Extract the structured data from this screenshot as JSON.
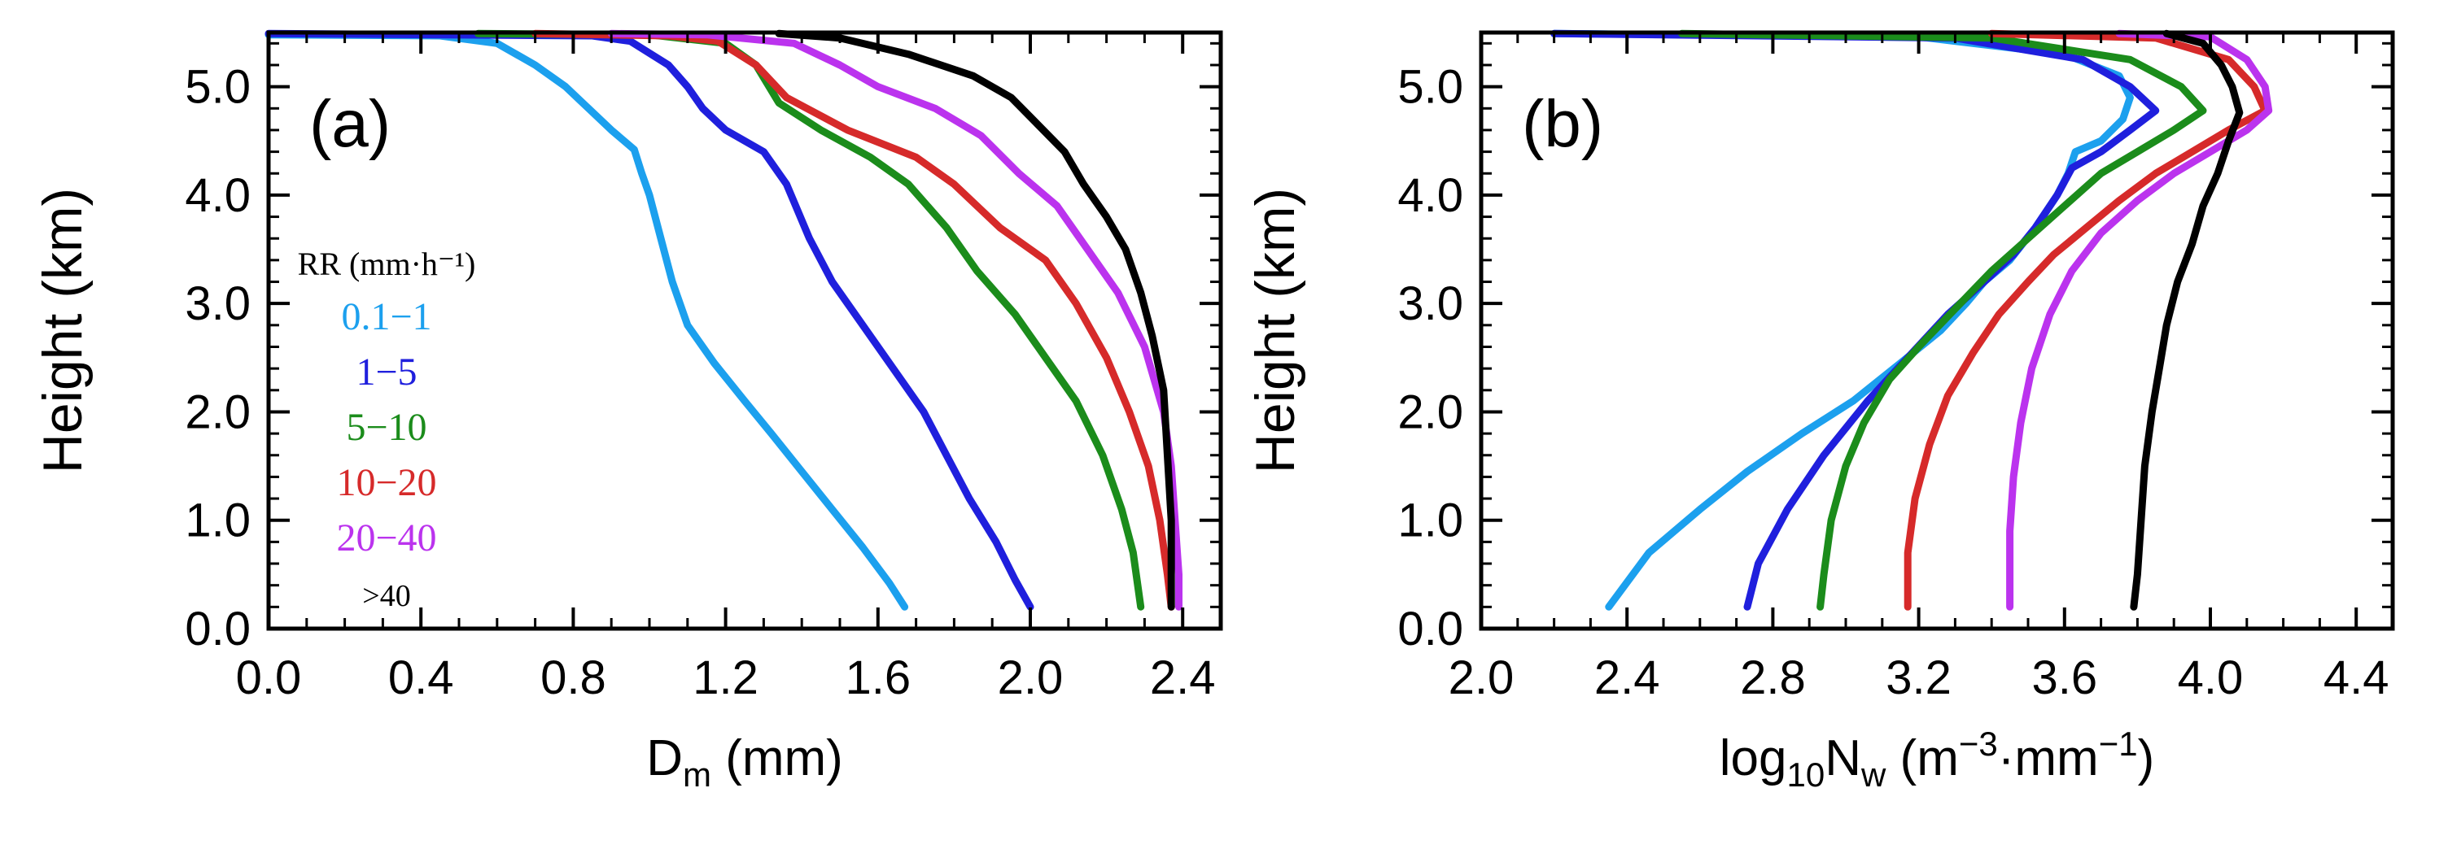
{
  "chart_data": [
    {
      "type": "line",
      "panel_label": "(a)",
      "xlabel": "D",
      "xlabel_sub": "m",
      "xlabel_unit": " (mm)",
      "ylabel": "Height (km)",
      "xlim": [
        0.0,
        2.5
      ],
      "ylim": [
        0.0,
        5.5
      ],
      "xticks": [
        "0.0",
        "0.4",
        "0.8",
        "1.2",
        "1.6",
        "2.0",
        "2.4"
      ],
      "yticks": [
        "0.0",
        "1.0",
        "2.0",
        "3.0",
        "4.0",
        "5.0"
      ],
      "legend": {
        "title": "RR (mm·h⁻¹)",
        "placement": "left"
      },
      "series": [
        {
          "name": "0.1−1",
          "color": "#1ca0ee",
          "points": [
            [
              0.0,
              5.48
            ],
            [
              0.45,
              5.47
            ],
            [
              0.6,
              5.4
            ],
            [
              0.7,
              5.2
            ],
            [
              0.78,
              5.0
            ],
            [
              0.84,
              4.8
            ],
            [
              0.9,
              4.6
            ],
            [
              0.96,
              4.42
            ],
            [
              0.98,
              4.2
            ],
            [
              1.0,
              4.0
            ],
            [
              1.03,
              3.6
            ],
            [
              1.06,
              3.2
            ],
            [
              1.1,
              2.8
            ],
            [
              1.17,
              2.45
            ],
            [
              1.25,
              2.1
            ],
            [
              1.32,
              1.8
            ],
            [
              1.4,
              1.45
            ],
            [
              1.48,
              1.1
            ],
            [
              1.56,
              0.75
            ],
            [
              1.63,
              0.42
            ],
            [
              1.67,
              0.2
            ]
          ]
        },
        {
          "name": "1−5",
          "color": "#1f1fdd",
          "points": [
            [
              0.0,
              5.49
            ],
            [
              0.85,
              5.47
            ],
            [
              0.95,
              5.42
            ],
            [
              1.05,
              5.2
            ],
            [
              1.1,
              5.0
            ],
            [
              1.14,
              4.8
            ],
            [
              1.2,
              4.6
            ],
            [
              1.3,
              4.4
            ],
            [
              1.36,
              4.1
            ],
            [
              1.42,
              3.6
            ],
            [
              1.48,
              3.2
            ],
            [
              1.56,
              2.8
            ],
            [
              1.64,
              2.4
            ],
            [
              1.72,
              2.0
            ],
            [
              1.78,
              1.6
            ],
            [
              1.84,
              1.2
            ],
            [
              1.91,
              0.8
            ],
            [
              1.96,
              0.45
            ],
            [
              2.0,
              0.2
            ]
          ]
        },
        {
          "name": "5−10",
          "color": "#1b8c1b",
          "points": [
            [
              0.55,
              5.49
            ],
            [
              1.0,
              5.48
            ],
            [
              1.2,
              5.4
            ],
            [
              1.28,
              5.2
            ],
            [
              1.34,
              4.85
            ],
            [
              1.45,
              4.6
            ],
            [
              1.58,
              4.35
            ],
            [
              1.68,
              4.1
            ],
            [
              1.78,
              3.7
            ],
            [
              1.86,
              3.3
            ],
            [
              1.96,
              2.9
            ],
            [
              2.04,
              2.5
            ],
            [
              2.12,
              2.1
            ],
            [
              2.19,
              1.6
            ],
            [
              2.24,
              1.1
            ],
            [
              2.27,
              0.7
            ],
            [
              2.29,
              0.2
            ]
          ]
        },
        {
          "name": "10−20",
          "color": "#d62a2a",
          "points": [
            [
              0.7,
              5.49
            ],
            [
              1.05,
              5.47
            ],
            [
              1.18,
              5.42
            ],
            [
              1.28,
              5.2
            ],
            [
              1.36,
              4.9
            ],
            [
              1.52,
              4.6
            ],
            [
              1.7,
              4.35
            ],
            [
              1.8,
              4.1
            ],
            [
              1.92,
              3.7
            ],
            [
              2.04,
              3.4
            ],
            [
              2.12,
              3.0
            ],
            [
              2.2,
              2.5
            ],
            [
              2.26,
              2.0
            ],
            [
              2.31,
              1.5
            ],
            [
              2.34,
              1.0
            ],
            [
              2.36,
              0.5
            ],
            [
              2.37,
              0.2
            ]
          ]
        },
        {
          "name": "20−40",
          "color": "#bb33ee",
          "points": [
            [
              0.9,
              5.49
            ],
            [
              1.15,
              5.48
            ],
            [
              1.38,
              5.4
            ],
            [
              1.5,
              5.2
            ],
            [
              1.6,
              5.0
            ],
            [
              1.75,
              4.8
            ],
            [
              1.87,
              4.55
            ],
            [
              1.97,
              4.2
            ],
            [
              2.07,
              3.9
            ],
            [
              2.15,
              3.5
            ],
            [
              2.23,
              3.1
            ],
            [
              2.3,
              2.6
            ],
            [
              2.35,
              2.0
            ],
            [
              2.37,
              1.5
            ],
            [
              2.38,
              1.0
            ],
            [
              2.39,
              0.5
            ],
            [
              2.39,
              0.2
            ]
          ]
        },
        {
          "name": ">40",
          "color": "#000000",
          "points": [
            [
              1.34,
              5.49
            ],
            [
              1.5,
              5.45
            ],
            [
              1.68,
              5.3
            ],
            [
              1.85,
              5.1
            ],
            [
              1.95,
              4.9
            ],
            [
              2.02,
              4.65
            ],
            [
              2.09,
              4.4
            ],
            [
              2.14,
              4.1
            ],
            [
              2.2,
              3.8
            ],
            [
              2.25,
              3.5
            ],
            [
              2.29,
              3.1
            ],
            [
              2.32,
              2.7
            ],
            [
              2.35,
              2.2
            ],
            [
              2.36,
              1.6
            ],
            [
              2.37,
              1.0
            ],
            [
              2.37,
              0.5
            ],
            [
              2.37,
              0.2
            ]
          ]
        }
      ]
    },
    {
      "type": "line",
      "panel_label": "(b)",
      "xlabel": "log",
      "xlabel_sub": "10",
      "xlabel_n": "N",
      "xlabel_nsub": "w",
      "xlabel_unit_a": " (m",
      "xlabel_sup1": "−3",
      "xlabel_unit_b": "·mm",
      "xlabel_sup2": "−1",
      "xlabel_unit_c": ")",
      "ylabel": "Height (km)",
      "xlim": [
        2.0,
        4.5
      ],
      "ylim": [
        0.0,
        5.5
      ],
      "xticks": [
        "2.0",
        "2.4",
        "2.8",
        "3.2",
        "3.6",
        "4.0",
        "4.4"
      ],
      "yticks": [
        "0.0",
        "1.0",
        "2.0",
        "3.0",
        "4.0",
        "5.0"
      ],
      "series": [
        {
          "name": "0.1−1",
          "color": "#1ca0ee",
          "points": [
            [
              2.2,
              5.49
            ],
            [
              3.2,
              5.46
            ],
            [
              3.6,
              5.3
            ],
            [
              3.75,
              5.1
            ],
            [
              3.78,
              4.9
            ],
            [
              3.76,
              4.7
            ],
            [
              3.7,
              4.5
            ],
            [
              3.63,
              4.4
            ],
            [
              3.61,
              4.2
            ],
            [
              3.58,
              4.0
            ],
            [
              3.52,
              3.7
            ],
            [
              3.45,
              3.4
            ],
            [
              3.38,
              3.2
            ],
            [
              3.33,
              3.0
            ],
            [
              3.26,
              2.75
            ],
            [
              3.15,
              2.45
            ],
            [
              3.02,
              2.1
            ],
            [
              2.88,
              1.8
            ],
            [
              2.73,
              1.45
            ],
            [
              2.6,
              1.1
            ],
            [
              2.46,
              0.7
            ],
            [
              2.35,
              0.2
            ]
          ]
        },
        {
          "name": "1−5",
          "color": "#1f1fdd",
          "points": [
            [
              2.2,
              5.49
            ],
            [
              3.3,
              5.45
            ],
            [
              3.65,
              5.25
            ],
            [
              3.78,
              5.0
            ],
            [
              3.85,
              4.78
            ],
            [
              3.78,
              4.6
            ],
            [
              3.7,
              4.4
            ],
            [
              3.62,
              4.25
            ],
            [
              3.58,
              4.0
            ],
            [
              3.52,
              3.7
            ],
            [
              3.46,
              3.45
            ],
            [
              3.38,
              3.2
            ],
            [
              3.28,
              2.9
            ],
            [
              3.17,
              2.5
            ],
            [
              3.06,
              2.1
            ],
            [
              2.94,
              1.6
            ],
            [
              2.84,
              1.1
            ],
            [
              2.76,
              0.6
            ],
            [
              2.73,
              0.2
            ]
          ]
        },
        {
          "name": "5−10",
          "color": "#1b8c1b",
          "points": [
            [
              2.55,
              5.49
            ],
            [
              3.4,
              5.45
            ],
            [
              3.78,
              5.25
            ],
            [
              3.92,
              5.0
            ],
            [
              3.98,
              4.78
            ],
            [
              3.9,
              4.6
            ],
            [
              3.8,
              4.4
            ],
            [
              3.7,
              4.2
            ],
            [
              3.6,
              3.9
            ],
            [
              3.5,
              3.6
            ],
            [
              3.4,
              3.3
            ],
            [
              3.3,
              2.95
            ],
            [
              3.2,
              2.6
            ],
            [
              3.12,
              2.3
            ],
            [
              3.05,
              1.9
            ],
            [
              3.0,
              1.5
            ],
            [
              2.96,
              1.0
            ],
            [
              2.94,
              0.5
            ],
            [
              2.93,
              0.2
            ]
          ]
        },
        {
          "name": "10−20",
          "color": "#d62a2a",
          "points": [
            [
              3.4,
              5.49
            ],
            [
              3.85,
              5.45
            ],
            [
              4.05,
              5.25
            ],
            [
              4.12,
              5.0
            ],
            [
              4.15,
              4.78
            ],
            [
              4.05,
              4.6
            ],
            [
              3.95,
              4.4
            ],
            [
              3.85,
              4.2
            ],
            [
              3.75,
              3.95
            ],
            [
              3.66,
              3.7
            ],
            [
              3.57,
              3.45
            ],
            [
              3.5,
              3.2
            ],
            [
              3.42,
              2.9
            ],
            [
              3.35,
              2.55
            ],
            [
              3.28,
              2.15
            ],
            [
              3.23,
              1.7
            ],
            [
              3.19,
              1.2
            ],
            [
              3.17,
              0.7
            ],
            [
              3.17,
              0.2
            ]
          ]
        },
        {
          "name": "20−40",
          "color": "#bb33ee",
          "points": [
            [
              3.75,
              5.49
            ],
            [
              4.0,
              5.46
            ],
            [
              4.1,
              5.25
            ],
            [
              4.15,
              5.0
            ],
            [
              4.16,
              4.78
            ],
            [
              4.1,
              4.6
            ],
            [
              4.0,
              4.4
            ],
            [
              3.9,
              4.2
            ],
            [
              3.8,
              3.95
            ],
            [
              3.7,
              3.65
            ],
            [
              3.62,
              3.3
            ],
            [
              3.56,
              2.9
            ],
            [
              3.51,
              2.4
            ],
            [
              3.48,
              1.9
            ],
            [
              3.46,
              1.4
            ],
            [
              3.45,
              0.9
            ],
            [
              3.45,
              0.5
            ],
            [
              3.45,
              0.2
            ]
          ]
        },
        {
          "name": ">40",
          "color": "#000000",
          "points": [
            [
              3.88,
              5.49
            ],
            [
              3.98,
              5.4
            ],
            [
              4.03,
              5.2
            ],
            [
              4.06,
              5.0
            ],
            [
              4.08,
              4.76
            ],
            [
              4.05,
              4.5
            ],
            [
              4.02,
              4.2
            ],
            [
              3.98,
              3.9
            ],
            [
              3.95,
              3.55
            ],
            [
              3.91,
              3.2
            ],
            [
              3.88,
              2.8
            ],
            [
              3.86,
              2.4
            ],
            [
              3.84,
              2.0
            ],
            [
              3.82,
              1.5
            ],
            [
              3.81,
              1.0
            ],
            [
              3.8,
              0.5
            ],
            [
              3.79,
              0.2
            ]
          ]
        }
      ]
    }
  ]
}
